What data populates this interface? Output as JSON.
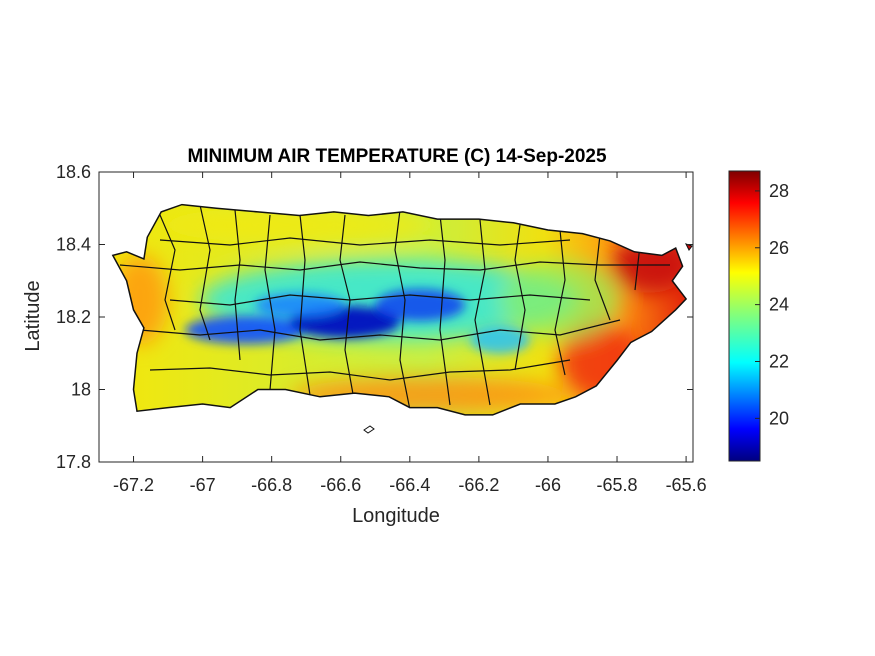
{
  "chart_data": {
    "type": "heatmap",
    "title": "MINIMUM AIR TEMPERATURE (C) 14-Sep-2025",
    "xlabel": "Longitude",
    "ylabel": "Latitude",
    "xlim": [
      -67.3,
      -65.58
    ],
    "ylim": [
      17.8,
      18.6
    ],
    "x_ticks": [
      -67.2,
      -67,
      -66.8,
      -66.6,
      -66.4,
      -66.2,
      -66,
      -65.8,
      -65.6
    ],
    "x_tick_labels": [
      "-67.2",
      "-67",
      "-66.8",
      "-66.6",
      "-66.4",
      "-66.2",
      "-66",
      "-65.8",
      "-65.6"
    ],
    "y_ticks": [
      17.8,
      18,
      18.2,
      18.4,
      18.6
    ],
    "y_tick_labels": [
      "17.8",
      "18",
      "18.2",
      "18.4",
      "18.6"
    ],
    "colorbar": {
      "colormap": "jet",
      "range": [
        18.5,
        28.7
      ],
      "ticks": [
        20,
        22,
        24,
        26,
        28
      ],
      "tick_labels": [
        "20",
        "22",
        "24",
        "26",
        "28"
      ]
    },
    "grid": false,
    "approximate_field_samples": [
      {
        "region": "west coast",
        "lon": -67.17,
        "lat": 18.2,
        "value": 25.8
      },
      {
        "region": "northwest coast",
        "lon": -67.05,
        "lat": 18.47,
        "value": 24.6
      },
      {
        "region": "north coast",
        "lon": -66.5,
        "lat": 18.47,
        "value": 24.0
      },
      {
        "region": "central mountains west",
        "lon": -66.8,
        "lat": 18.17,
        "value": 21.0
      },
      {
        "region": "central mountains",
        "lon": -66.55,
        "lat": 18.17,
        "value": 19.6
      },
      {
        "region": "central mountains east",
        "lon": -66.35,
        "lat": 18.2,
        "value": 20.8
      },
      {
        "region": "south coast",
        "lon": -66.5,
        "lat": 17.97,
        "value": 25.8
      },
      {
        "region": "southeast coast",
        "lon": -65.9,
        "lat": 18.0,
        "value": 27.2
      },
      {
        "region": "northeast coast",
        "lon": -65.68,
        "lat": 18.35,
        "value": 28.2
      },
      {
        "region": "east interior",
        "lon": -65.95,
        "lat": 18.22,
        "value": 23.6
      }
    ]
  }
}
